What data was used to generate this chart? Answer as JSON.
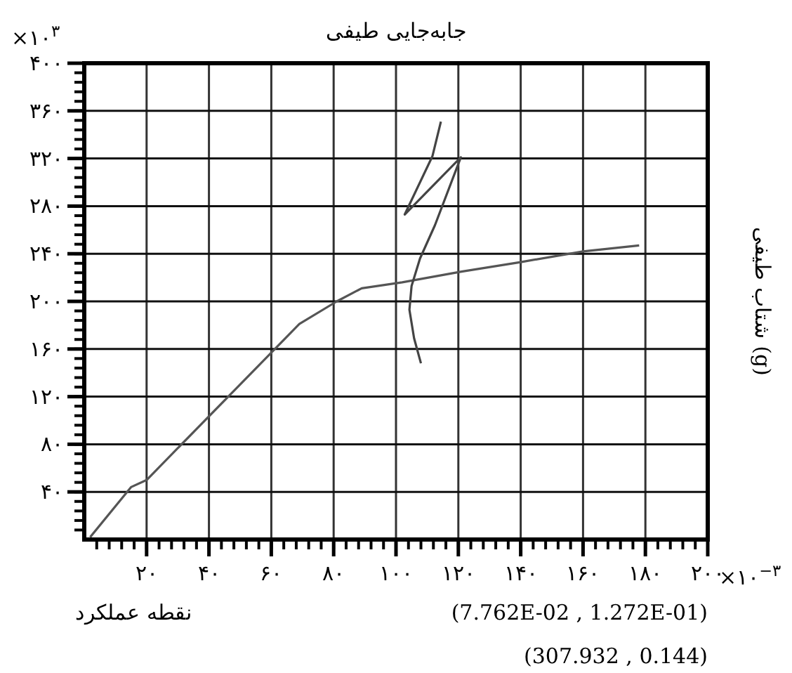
{
  "chart_data": {
    "type": "line",
    "title": "جابه‌جایی طیفی",
    "ylabel": "شتاب طیفی (g)",
    "annotations": [
      "×۱۰$^{۳}$",
      "×۱۰$^{−۳}$",
      "نقطه عملکرد",
      "(7.762E-02 , 1.272E-01)",
      "(307.932  , 0.144)"
    ],
    "xlim": [
      0,
      200
    ],
    "ylim": [
      0,
      400
    ],
    "xticks": [
      {
        "value": 20,
        "label": "۲۰"
      },
      {
        "value": 40,
        "label": "۴۰"
      },
      {
        "value": 60,
        "label": "۶۰"
      },
      {
        "value": 80,
        "label": "۸۰"
      },
      {
        "value": 100,
        "label": "۱۰۰"
      },
      {
        "value": 120,
        "label": "۱۲۰"
      },
      {
        "value": 140,
        "label": "۱۴۰"
      },
      {
        "value": 160,
        "label": "۱۶۰"
      },
      {
        "value": 180,
        "label": "۱۸۰"
      },
      {
        "value": 200,
        "label": "۲۰۰"
      }
    ],
    "yticks": [
      {
        "value": 40,
        "label": "۴۰"
      },
      {
        "value": 80,
        "label": "۸۰"
      },
      {
        "value": 120,
        "label": "۱۲۰"
      },
      {
        "value": 160,
        "label": "۱۶۰"
      },
      {
        "value": 200,
        "label": "۲۰۰"
      },
      {
        "value": 240,
        "label": "۲۴۰"
      },
      {
        "value": 280,
        "label": "۲۸۰"
      },
      {
        "value": 320,
        "label": "۳۲۰"
      },
      {
        "value": 360,
        "label": "۳۶۰"
      },
      {
        "value": 400,
        "label": "۴۰۰"
      }
    ],
    "grid": true,
    "series": [
      {
        "color": "#555555",
        "x": [
          1.9,
          15,
          20,
          69,
          81,
          89,
          102,
          121,
          140,
          160,
          178
        ],
        "values": [
          2,
          44,
          50,
          181,
          200,
          211,
          216,
          225,
          233,
          242,
          247
        ]
      },
      {
        "color": "#444444",
        "x": [
          114.4,
          111.7,
          102.8,
          120.8,
          112.5,
          107.7,
          105,
          104.3,
          105.8,
          108
        ],
        "values": [
          351,
          322,
          273,
          321,
          264,
          236,
          213,
          193,
          169,
          148
        ]
      }
    ]
  }
}
